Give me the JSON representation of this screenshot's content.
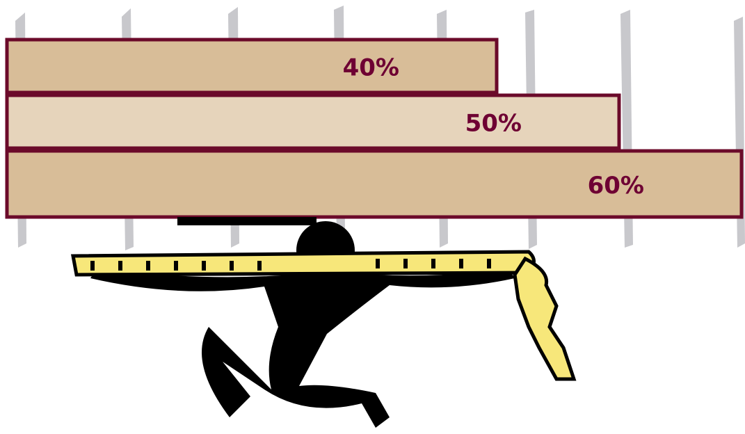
{
  "chart_data": {
    "type": "bar",
    "values": [
      40,
      50,
      60
    ],
    "value_labels": [
      "40%",
      "50%",
      "60%"
    ],
    "colors": [
      "#d8bd98",
      "#e6d4bb",
      "#d8bd98"
    ]
  }
}
